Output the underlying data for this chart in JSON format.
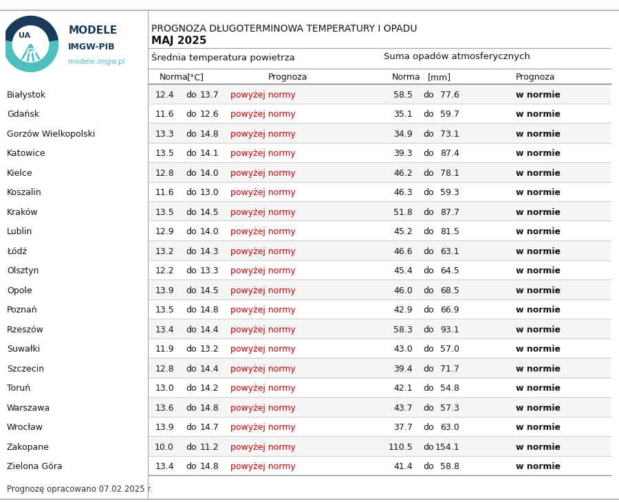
{
  "title_line1": "PROGNOZA DŁUGOTERMINOWA TEMPERATURY I OPADU",
  "title_line2": "MAJ 2025",
  "subtitle_temp": "Średnio temperatura powietrza",
  "subtitle_precip": "Suma opadów atmosferycznych",
  "footer": "Prognozę opracowano 07.02.2025 r.",
  "rows": [
    {
      "city": "Białystok",
      "t_lo": 12.4,
      "t_hi": 13.7,
      "p_lo": 58.5,
      "p_hi": 77.6
    },
    {
      "city": "Gdańsk",
      "t_lo": 11.6,
      "t_hi": 12.6,
      "p_lo": 35.1,
      "p_hi": 59.7
    },
    {
      "city": "Gorzów Wielkopolski",
      "t_lo": 13.3,
      "t_hi": 14.8,
      "p_lo": 34.9,
      "p_hi": 73.1
    },
    {
      "city": "Katowice",
      "t_lo": 13.5,
      "t_hi": 14.1,
      "p_lo": 39.3,
      "p_hi": 87.4
    },
    {
      "city": "Kielce",
      "t_lo": 12.8,
      "t_hi": 14.0,
      "p_lo": 46.2,
      "p_hi": 78.1
    },
    {
      "city": "Koszalin",
      "t_lo": 11.6,
      "t_hi": 13.0,
      "p_lo": 46.3,
      "p_hi": 59.3
    },
    {
      "city": "Kraków",
      "t_lo": 13.5,
      "t_hi": 14.5,
      "p_lo": 51.8,
      "p_hi": 87.7
    },
    {
      "city": "Lublin",
      "t_lo": 12.9,
      "t_hi": 14.0,
      "p_lo": 45.2,
      "p_hi": 81.5
    },
    {
      "city": "Łódź",
      "t_lo": 13.2,
      "t_hi": 14.3,
      "p_lo": 46.6,
      "p_hi": 63.1
    },
    {
      "city": "Olsztyn",
      "t_lo": 12.2,
      "t_hi": 13.3,
      "p_lo": 45.4,
      "p_hi": 64.5
    },
    {
      "city": "Opole",
      "t_lo": 13.9,
      "t_hi": 14.5,
      "p_lo": 46.0,
      "p_hi": 68.5
    },
    {
      "city": "Poznań",
      "t_lo": 13.5,
      "t_hi": 14.8,
      "p_lo": 42.9,
      "p_hi": 66.9
    },
    {
      "city": "Rzeszów",
      "t_lo": 13.4,
      "t_hi": 14.4,
      "p_lo": 58.3,
      "p_hi": 93.1
    },
    {
      "city": "Suwałki",
      "t_lo": 11.9,
      "t_hi": 13.2,
      "p_lo": 43.0,
      "p_hi": 57.0
    },
    {
      "city": "Szczecin",
      "t_lo": 12.8,
      "t_hi": 14.4,
      "p_lo": 39.4,
      "p_hi": 71.7
    },
    {
      "city": "Toruń",
      "t_lo": 13.0,
      "t_hi": 14.2,
      "p_lo": 42.1,
      "p_hi": 54.8
    },
    {
      "city": "Warszawa",
      "t_lo": 13.6,
      "t_hi": 14.8,
      "p_lo": 43.7,
      "p_hi": 57.3
    },
    {
      "city": "Wrocław",
      "t_lo": 13.9,
      "t_hi": 14.7,
      "p_lo": 37.7,
      "p_hi": 63.0
    },
    {
      "city": "Zakopane",
      "t_lo": 10.0,
      "t_hi": 11.2,
      "p_lo": 110.5,
      "p_hi": 154.1
    },
    {
      "city": "Zielona Góra",
      "t_lo": 13.4,
      "t_hi": 14.8,
      "p_lo": 41.4,
      "p_hi": 58.8
    }
  ],
  "temp_forecast": "powyżej normy",
  "precip_forecast": "w normie",
  "bg_color": "#ffffff",
  "row_bg_odd": "#f0f0f0",
  "red_color": "#cc0000",
  "line_color_dark": "#999999",
  "line_color_light": "#cccccc",
  "logo_teal": "#4dbfbf",
  "logo_dark": "#1a3a5c",
  "logo_teal2": "#5ecece"
}
